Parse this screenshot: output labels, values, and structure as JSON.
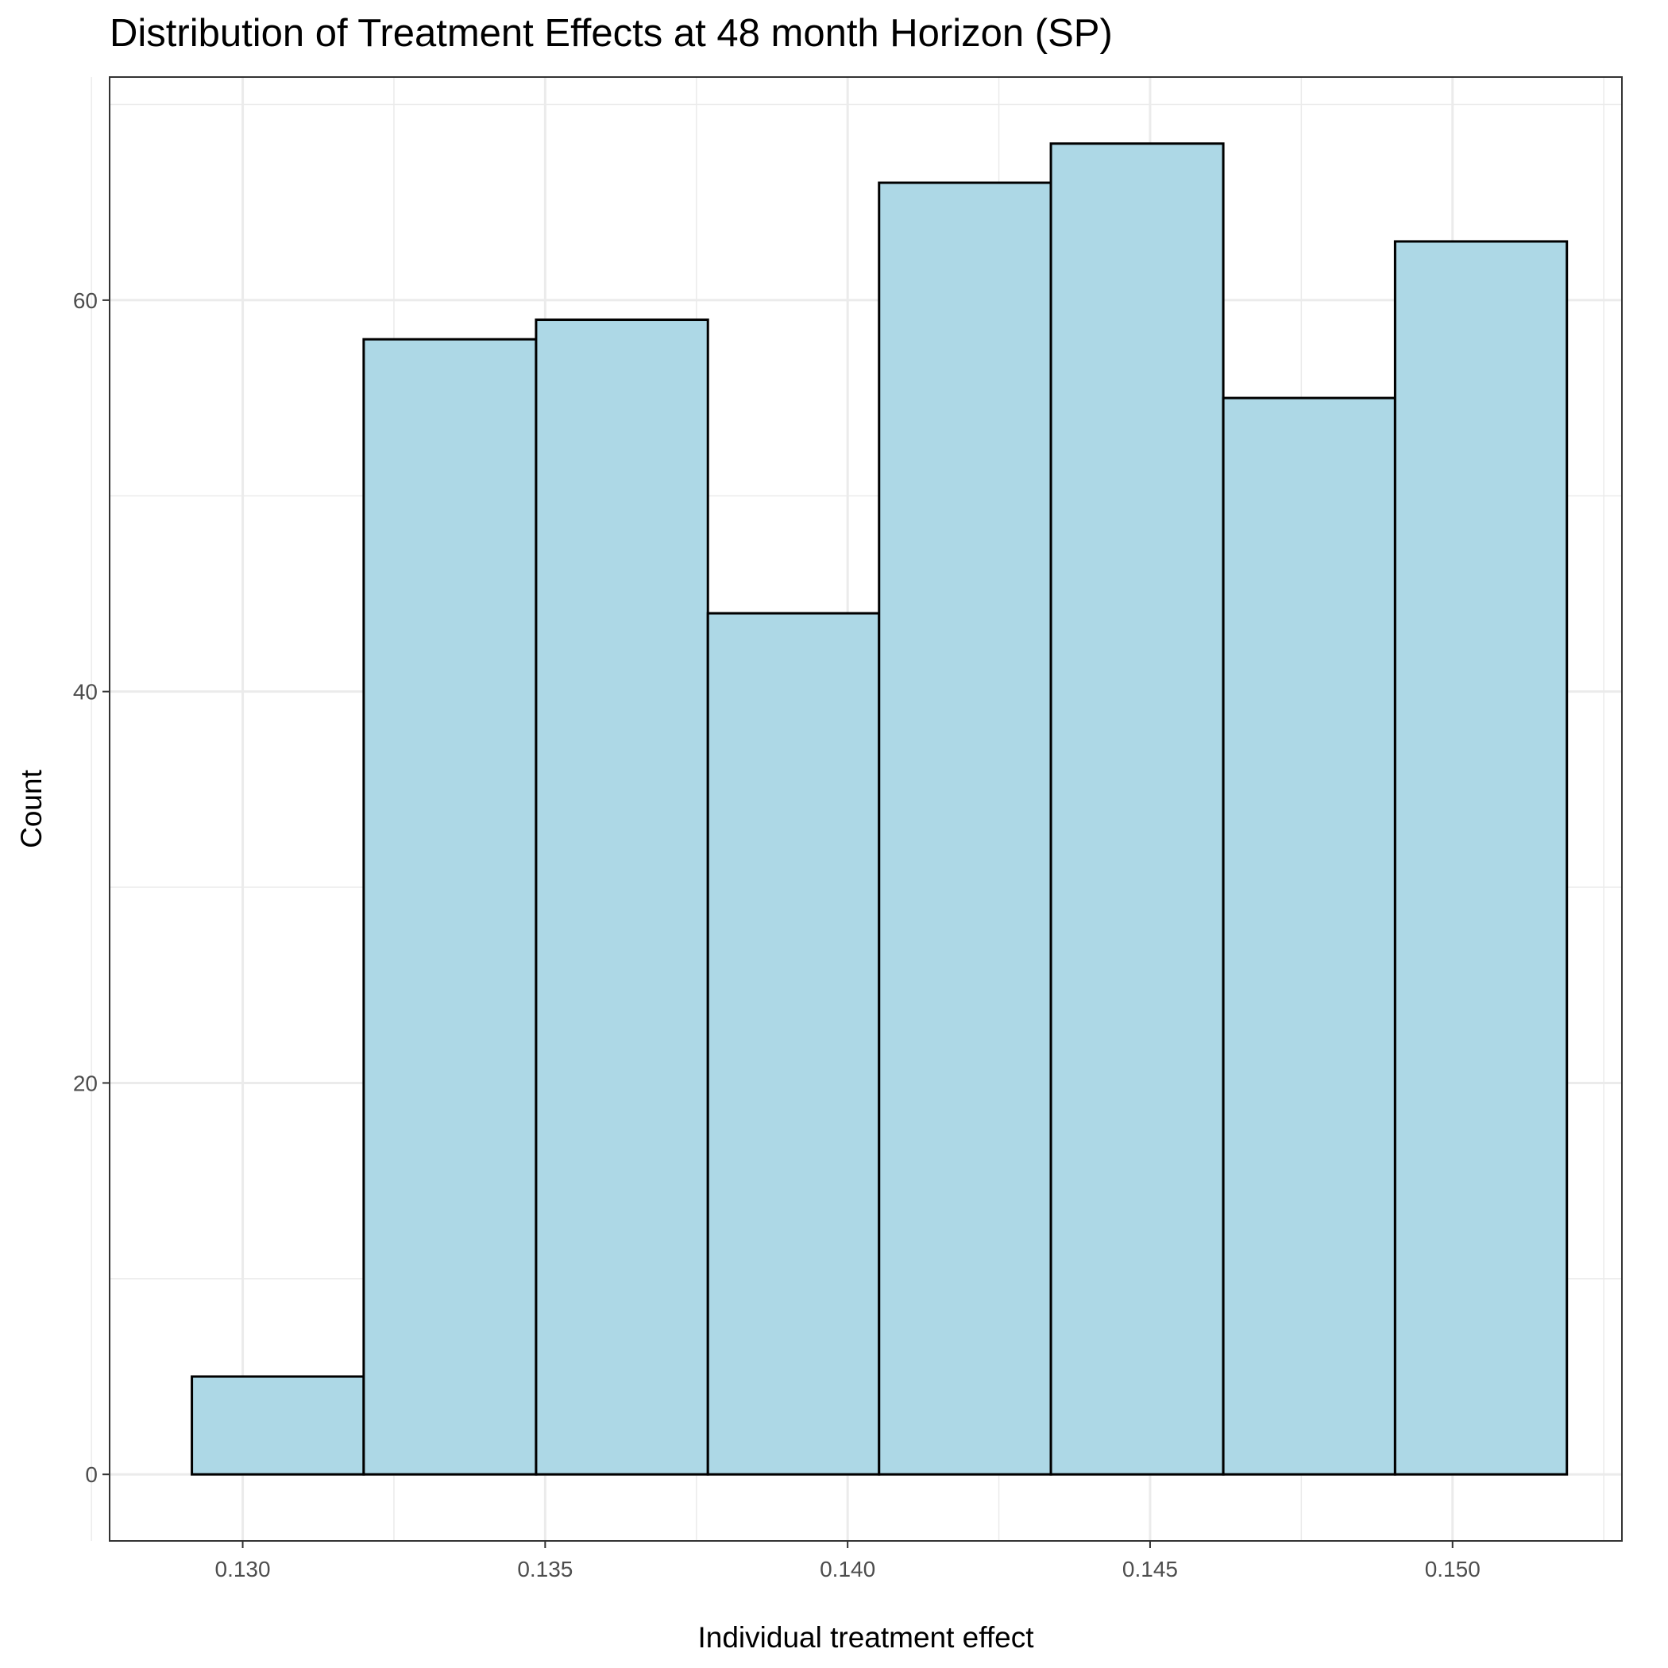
{
  "chart_data": {
    "type": "bar",
    "title": "Distribution of Treatment Effects at 48 month Horizon (SP)",
    "xlabel": "Individual treatment effect",
    "ylabel": "Count",
    "bin_edges": [
      0.12916,
      0.132,
      0.13485,
      0.13769,
      0.14052,
      0.14336,
      0.14621,
      0.14905,
      0.15189
    ],
    "values": [
      5,
      58,
      59,
      44,
      66,
      68,
      55,
      63
    ],
    "xlim": [
      0.1278,
      0.1528
    ],
    "ylim": [
      -3.4,
      71.4
    ],
    "x_ticks": [
      0.13,
      0.135,
      0.14,
      0.145,
      0.15
    ],
    "x_tick_labels": [
      "0.130",
      "0.135",
      "0.140",
      "0.145",
      "0.150"
    ],
    "x_minor_ticks": [
      0.1275,
      0.1325,
      0.1375,
      0.1425,
      0.1475,
      0.1525
    ],
    "y_ticks": [
      0,
      20,
      40,
      60
    ],
    "y_tick_labels": [
      "0",
      "20",
      "40",
      "60"
    ],
    "y_minor_ticks": [
      10,
      30,
      50,
      70
    ],
    "grid": true,
    "legend": "none",
    "colors": {
      "fill": "#add8e6",
      "outline": "#000000",
      "grid": "#ebebeb",
      "panel_border": "#333333"
    }
  }
}
